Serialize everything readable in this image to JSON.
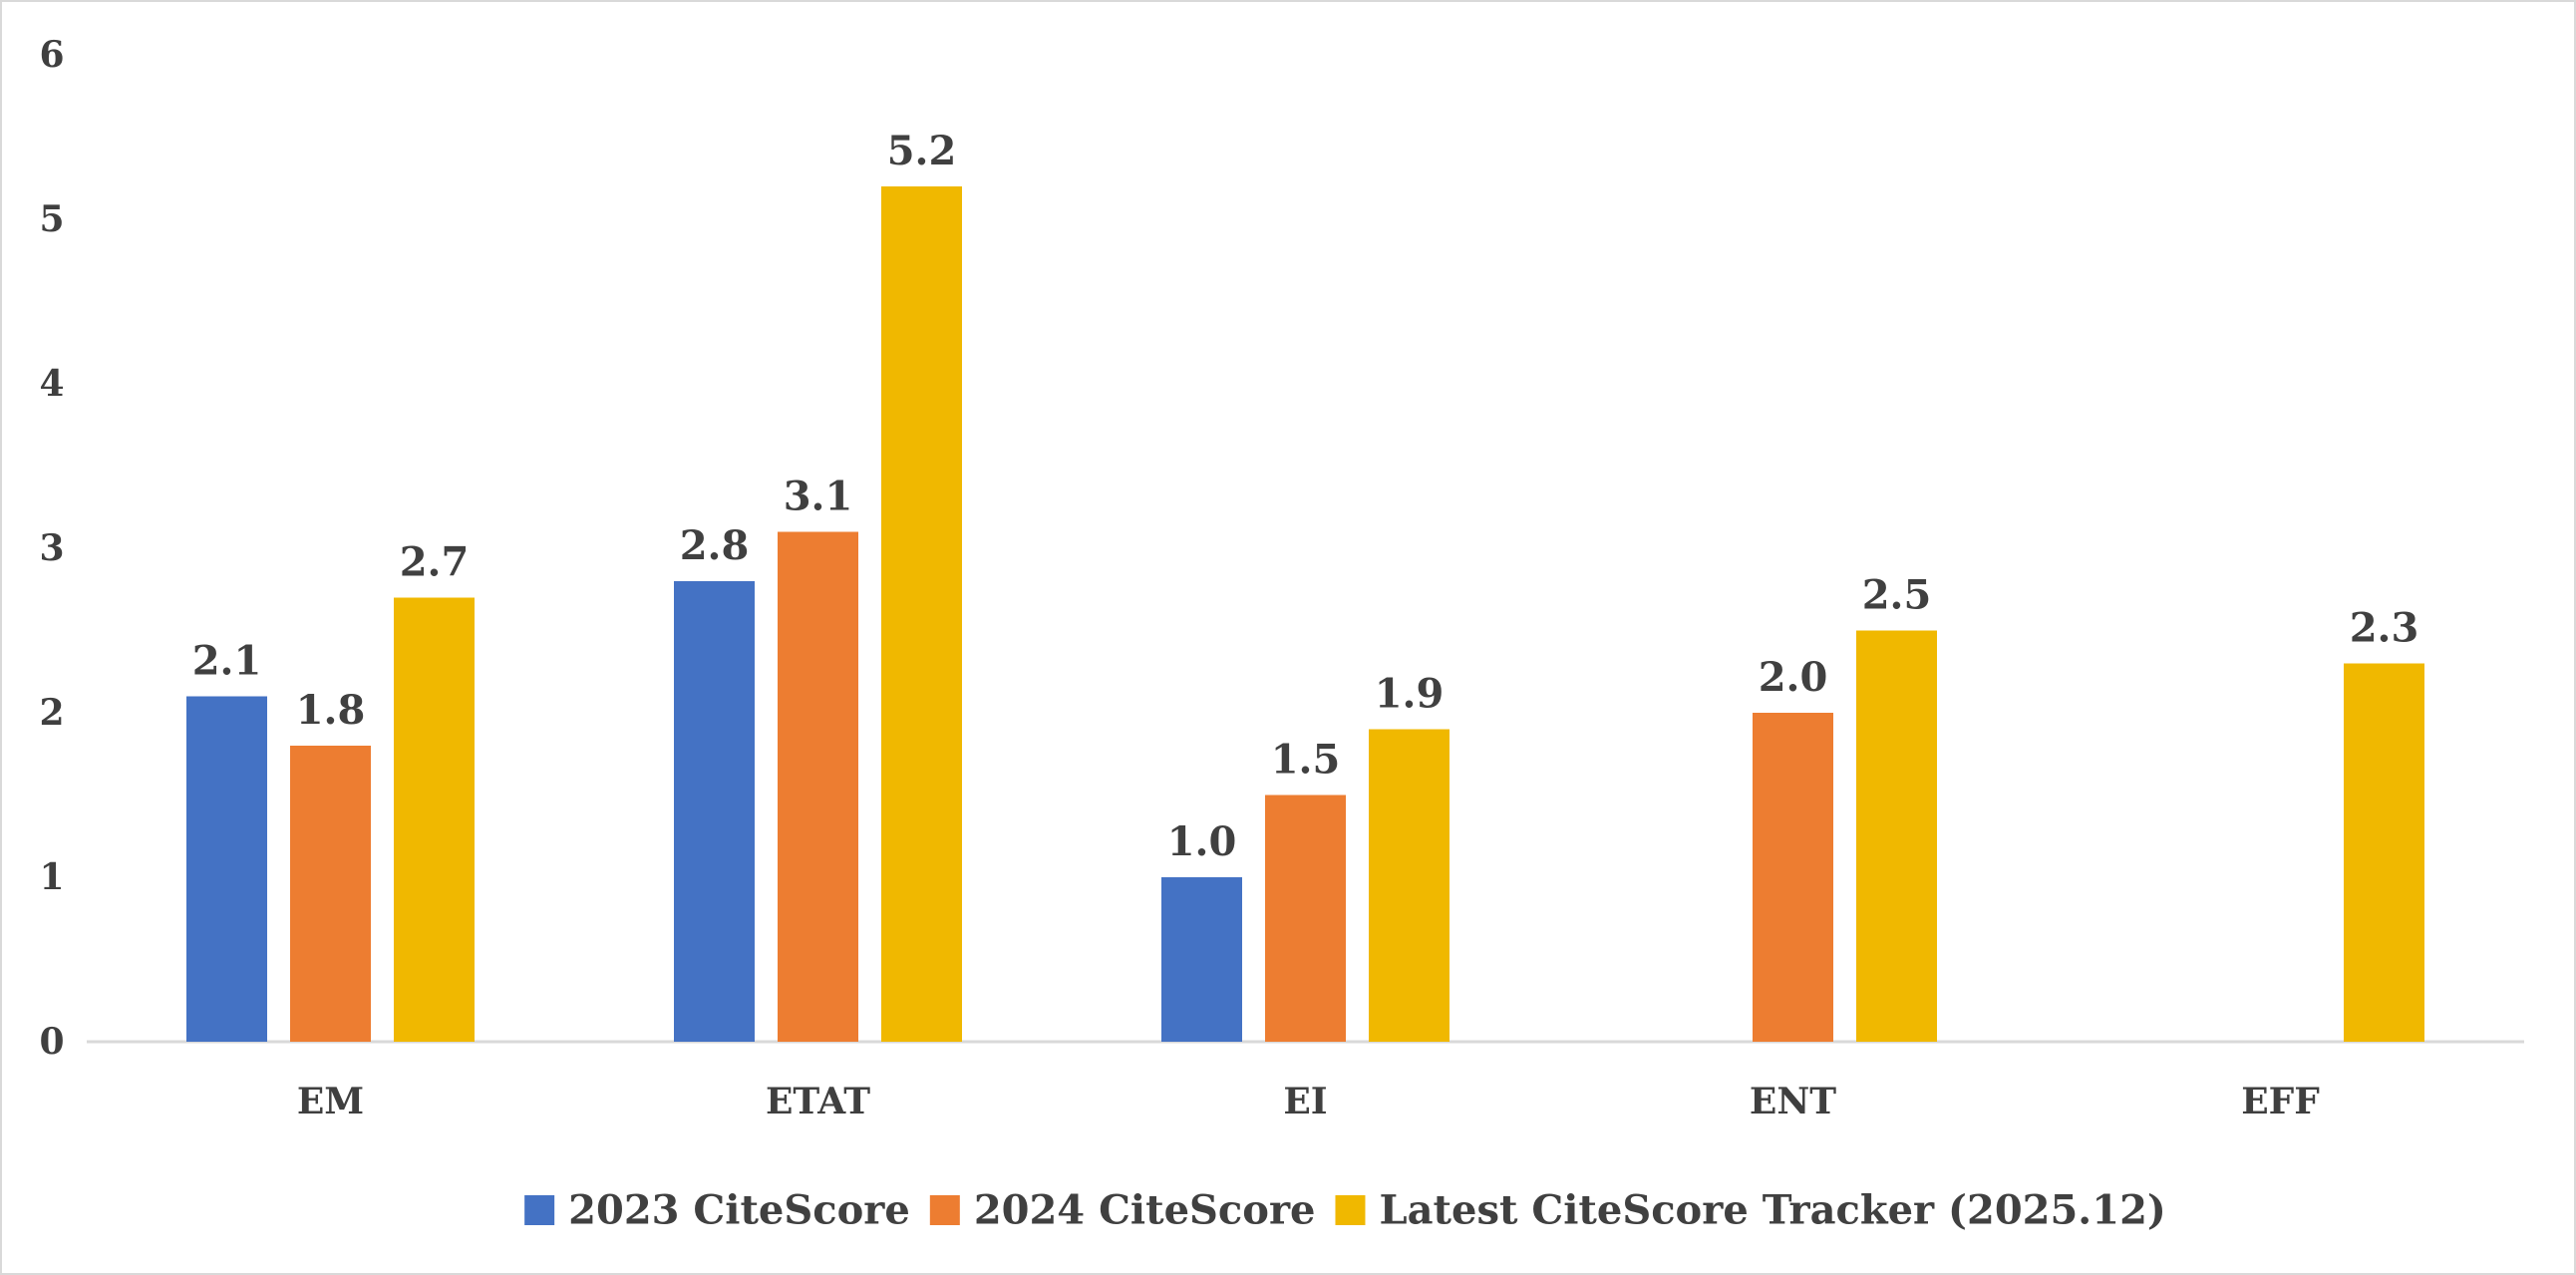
{
  "chart_data": {
    "type": "bar",
    "title": "",
    "xlabel": "",
    "ylabel": "",
    "ylim": [
      0,
      6
    ],
    "yticks": [
      "0",
      "1",
      "2",
      "3",
      "4",
      "5",
      "6"
    ],
    "categories": [
      "EM",
      "ETAT",
      "EI",
      "ENT",
      "EFF"
    ],
    "series": [
      {
        "name": "2023 CiteScore",
        "color": "#4472c4",
        "values": [
          2.1,
          2.8,
          1.0,
          null,
          null
        ],
        "labels": [
          "2.1",
          "2.8",
          "1.0",
          "",
          ""
        ]
      },
      {
        "name": "2024 CiteScore",
        "color": "#ed7d31",
        "values": [
          1.8,
          3.1,
          1.5,
          2.0,
          null
        ],
        "labels": [
          "1.8",
          "3.1",
          "1.5",
          "2.0",
          ""
        ]
      },
      {
        "name": "Latest CiteScore Tracker (2025.12)",
        "color": "#f0b800",
        "values": [
          2.7,
          5.2,
          1.9,
          2.5,
          2.3
        ],
        "labels": [
          "2.7",
          "5.2",
          "1.9",
          "2.5",
          "2.3"
        ]
      }
    ],
    "grid": false,
    "legend_position": "bottom"
  }
}
